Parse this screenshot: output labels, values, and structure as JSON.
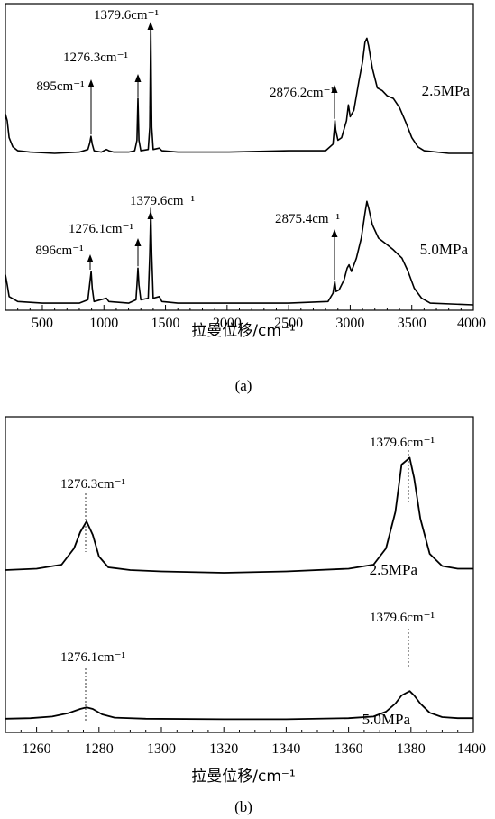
{
  "chart_data": [
    {
      "panel": "(a)",
      "type": "line",
      "xlabel": "拉曼位移/cm⁻¹",
      "ylabel": "",
      "xlim": [
        200,
        4000
      ],
      "xticks": [
        500,
        1000,
        1500,
        2000,
        2500,
        3000,
        3500,
        4000
      ],
      "grid": false,
      "series": [
        {
          "name": "2.5MPa",
          "offset": 1.2,
          "points": [
            [
              200,
              0.3
            ],
            [
              215,
              0.25
            ],
            [
              230,
              0.12
            ],
            [
              260,
              0.05
            ],
            [
              300,
              0.02
            ],
            [
              400,
              0.01
            ],
            [
              600,
              0.0
            ],
            [
              800,
              0.01
            ],
            [
              870,
              0.03
            ],
            [
              885,
              0.08
            ],
            [
              895,
              0.13
            ],
            [
              905,
              0.07
            ],
            [
              920,
              0.02
            ],
            [
              980,
              0.01
            ],
            [
              1020,
              0.03
            ],
            [
              1040,
              0.02
            ],
            [
              1080,
              0.01
            ],
            [
              1200,
              0.01
            ],
            [
              1250,
              0.02
            ],
            [
              1268,
              0.1
            ],
            [
              1276,
              0.42
            ],
            [
              1284,
              0.1
            ],
            [
              1300,
              0.02
            ],
            [
              1360,
              0.03
            ],
            [
              1372,
              0.2
            ],
            [
              1380,
              0.97
            ],
            [
              1388,
              0.2
            ],
            [
              1400,
              0.03
            ],
            [
              1450,
              0.04
            ],
            [
              1470,
              0.02
            ],
            [
              1600,
              0.01
            ],
            [
              2000,
              0.01
            ],
            [
              2500,
              0.02
            ],
            [
              2800,
              0.02
            ],
            [
              2860,
              0.07
            ],
            [
              2870,
              0.18
            ],
            [
              2876,
              0.25
            ],
            [
              2882,
              0.18
            ],
            [
              2900,
              0.1
            ],
            [
              2930,
              0.12
            ],
            [
              2970,
              0.25
            ],
            [
              2985,
              0.37
            ],
            [
              3000,
              0.28
            ],
            [
              3030,
              0.33
            ],
            [
              3070,
              0.55
            ],
            [
              3100,
              0.7
            ],
            [
              3120,
              0.85
            ],
            [
              3135,
              0.88
            ],
            [
              3150,
              0.82
            ],
            [
              3180,
              0.65
            ],
            [
              3220,
              0.5
            ],
            [
              3260,
              0.48
            ],
            [
              3300,
              0.44
            ],
            [
              3350,
              0.42
            ],
            [
              3400,
              0.35
            ],
            [
              3450,
              0.24
            ],
            [
              3500,
              0.12
            ],
            [
              3550,
              0.05
            ],
            [
              3600,
              0.02
            ],
            [
              3800,
              0.0
            ],
            [
              4000,
              0.0
            ]
          ]
        },
        {
          "name": "5.0MPa",
          "offset": 0.0,
          "points": [
            [
              200,
              0.18
            ],
            [
              215,
              0.12
            ],
            [
              230,
              0.05
            ],
            [
              300,
              0.02
            ],
            [
              500,
              0.01
            ],
            [
              800,
              0.01
            ],
            [
              870,
              0.03
            ],
            [
              885,
              0.13
            ],
            [
              896,
              0.2
            ],
            [
              905,
              0.1
            ],
            [
              920,
              0.02
            ],
            [
              1020,
              0.04
            ],
            [
              1040,
              0.02
            ],
            [
              1200,
              0.01
            ],
            [
              1260,
              0.03
            ],
            [
              1268,
              0.12
            ],
            [
              1276,
              0.22
            ],
            [
              1284,
              0.12
            ],
            [
              1300,
              0.03
            ],
            [
              1360,
              0.04
            ],
            [
              1372,
              0.3
            ],
            [
              1380,
              0.57
            ],
            [
              1388,
              0.3
            ],
            [
              1400,
              0.04
            ],
            [
              1450,
              0.05
            ],
            [
              1470,
              0.02
            ],
            [
              1600,
              0.01
            ],
            [
              2000,
              0.01
            ],
            [
              2500,
              0.01
            ],
            [
              2820,
              0.02
            ],
            [
              2860,
              0.07
            ],
            [
              2875,
              0.14
            ],
            [
              2885,
              0.08
            ],
            [
              2910,
              0.09
            ],
            [
              2950,
              0.15
            ],
            [
              2975,
              0.22
            ],
            [
              2990,
              0.24
            ],
            [
              3010,
              0.2
            ],
            [
              3050,
              0.28
            ],
            [
              3090,
              0.4
            ],
            [
              3120,
              0.55
            ],
            [
              3135,
              0.62
            ],
            [
              3150,
              0.58
            ],
            [
              3180,
              0.48
            ],
            [
              3230,
              0.4
            ],
            [
              3300,
              0.36
            ],
            [
              3350,
              0.33
            ],
            [
              3420,
              0.28
            ],
            [
              3470,
              0.2
            ],
            [
              3520,
              0.1
            ],
            [
              3580,
              0.04
            ],
            [
              3650,
              0.01
            ],
            [
              4000,
              0.0
            ]
          ]
        }
      ],
      "annotations": [
        {
          "text": "895cm⁻¹",
          "x": 895,
          "series": "2.5MPa"
        },
        {
          "text": "1276.3cm⁻¹",
          "x": 1276,
          "series": "2.5MPa"
        },
        {
          "text": "1379.6cm⁻¹",
          "x": 1380,
          "series": "2.5MPa"
        },
        {
          "text": "2876.2cm⁻¹",
          "x": 2876,
          "series": "2.5MPa"
        },
        {
          "text": "896cm⁻¹",
          "x": 896,
          "series": "5.0MPa"
        },
        {
          "text": "1276.1cm⁻¹",
          "x": 1276,
          "series": "5.0MPa"
        },
        {
          "text": "1379.6cm⁻¹",
          "x": 1380,
          "series": "5.0MPa"
        },
        {
          "text": "2875.4cm⁻¹",
          "x": 2875,
          "series": "5.0MPa"
        }
      ]
    },
    {
      "panel": "(b)",
      "type": "line",
      "xlabel": "拉曼位移/cm⁻¹",
      "ylabel": "",
      "xlim": [
        1250,
        1400
      ],
      "xticks": [
        1260,
        1280,
        1300,
        1320,
        1340,
        1360,
        1380,
        1400
      ],
      "grid": false,
      "series": [
        {
          "name": "2.5MPa",
          "offset": 1.1,
          "points": [
            [
              1250,
              0.02
            ],
            [
              1260,
              0.03
            ],
            [
              1268,
              0.06
            ],
            [
              1272,
              0.18
            ],
            [
              1274,
              0.3
            ],
            [
              1276,
              0.38
            ],
            [
              1278,
              0.28
            ],
            [
              1280,
              0.12
            ],
            [
              1283,
              0.04
            ],
            [
              1290,
              0.02
            ],
            [
              1300,
              0.01
            ],
            [
              1320,
              0.0
            ],
            [
              1340,
              0.01
            ],
            [
              1360,
              0.03
            ],
            [
              1368,
              0.06
            ],
            [
              1372,
              0.18
            ],
            [
              1375,
              0.45
            ],
            [
              1377,
              0.8
            ],
            [
              1379.6,
              0.85
            ],
            [
              1381,
              0.7
            ],
            [
              1383,
              0.4
            ],
            [
              1386,
              0.14
            ],
            [
              1390,
              0.05
            ],
            [
              1395,
              0.03
            ],
            [
              1400,
              0.03
            ]
          ]
        },
        {
          "name": "5.0MPa",
          "offset": 0.0,
          "points": [
            [
              1250,
              0.02
            ],
            [
              1258,
              0.03
            ],
            [
              1265,
              0.06
            ],
            [
              1270,
              0.12
            ],
            [
              1274,
              0.2
            ],
            [
              1276,
              0.23
            ],
            [
              1278,
              0.2
            ],
            [
              1281,
              0.1
            ],
            [
              1285,
              0.04
            ],
            [
              1295,
              0.02
            ],
            [
              1320,
              0.01
            ],
            [
              1340,
              0.01
            ],
            [
              1360,
              0.03
            ],
            [
              1368,
              0.06
            ],
            [
              1372,
              0.15
            ],
            [
              1375,
              0.3
            ],
            [
              1377,
              0.45
            ],
            [
              1379.6,
              0.53
            ],
            [
              1381,
              0.45
            ],
            [
              1383,
              0.3
            ],
            [
              1386,
              0.13
            ],
            [
              1390,
              0.05
            ],
            [
              1395,
              0.03
            ],
            [
              1400,
              0.03
            ]
          ]
        }
      ],
      "annotations": [
        {
          "text": "1276.3cm⁻¹",
          "x": 1276,
          "series": "2.5MPa"
        },
        {
          "text": "1379.6cm⁻¹",
          "x": 1379.6,
          "series": "2.5MPa"
        },
        {
          "text": "1276.1cm⁻¹",
          "x": 1276,
          "series": "5.0MPa"
        },
        {
          "text": "1379.6cm⁻¹",
          "x": 1379.6,
          "series": "5.0MPa"
        }
      ]
    }
  ]
}
